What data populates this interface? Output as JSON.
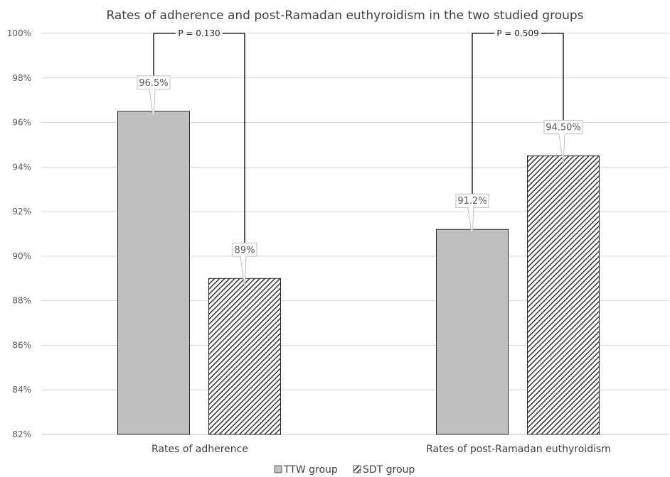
{
  "chart_data": {
    "type": "bar",
    "title": "Rates of adherence and post-Ramadan euthyroidism in the two studied groups",
    "xlabel": "",
    "ylabel": "",
    "categories": [
      "Rates of adherence",
      "Rates of post-Ramadan euthyroidism"
    ],
    "series": [
      {
        "name": "TTW group",
        "values": [
          96.5,
          91.2
        ],
        "labels": [
          "96.5%",
          "91.2%"
        ],
        "color": "#bfbfbf",
        "pattern": "solid"
      },
      {
        "name": "SDT group",
        "values": [
          89,
          94.5
        ],
        "labels": [
          "89%",
          "94.50%"
        ],
        "color": "#404040",
        "pattern": "diagonal-hatch"
      }
    ],
    "ylim": [
      82,
      100
    ],
    "yticks": [
      "82%",
      "84%",
      "86%",
      "88%",
      "90%",
      "92%",
      "94%",
      "96%",
      "98%",
      "100%"
    ],
    "annotations": [
      "P = 0.130",
      "P = 0.509"
    ],
    "grid": true,
    "legend": "bottom"
  }
}
